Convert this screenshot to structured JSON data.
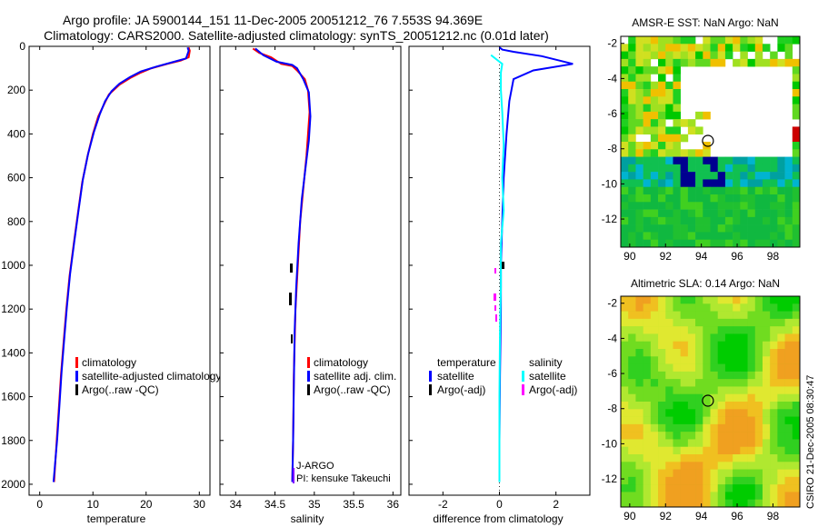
{
  "title_line1": "Argo profile: JA 5900144_151 11-Dec-2005 20051212_76 7.553S 94.369E",
  "title_line2": "Climatology: CARS2000. Satellite-adjusted climatology: synTS_20051212.nc (0.01d later)",
  "timestamp": "CSIRO 21-Dec-2005 08:30:47",
  "colors": {
    "climatology": "#ff0000",
    "satellite": "#0000ff",
    "argo": "#000000",
    "sat_diff": "#00ffff",
    "argo_adj": "#ff00ff"
  },
  "chart_data": [
    {
      "type": "line",
      "name": "temperature-panel",
      "xlabel": "temperature",
      "ylabel": "",
      "xlim": [
        -2,
        32
      ],
      "ylim": [
        2050,
        0
      ],
      "xticks": [
        0,
        10,
        20,
        30
      ],
      "yticks": [
        0,
        200,
        400,
        600,
        800,
        1000,
        1200,
        1400,
        1600,
        1800,
        2000
      ],
      "series": [
        {
          "name": "climatology",
          "color_key": "climatology",
          "points": [
            [
              28.0,
              5
            ],
            [
              28.2,
              20
            ],
            [
              28.0,
              50
            ],
            [
              26.5,
              65
            ],
            [
              24.0,
              80
            ],
            [
              21.0,
              100
            ],
            [
              19.0,
              120
            ],
            [
              17.0,
              145
            ],
            [
              15.0,
              175
            ],
            [
              13.0,
              220
            ],
            [
              12.0,
              270
            ],
            [
              11.0,
              320
            ],
            [
              10.0,
              400
            ],
            [
              9.0,
              500
            ],
            [
              8.0,
              620
            ],
            [
              7.2,
              760
            ],
            [
              6.4,
              900
            ],
            [
              5.6,
              1050
            ],
            [
              5.0,
              1200
            ],
            [
              4.5,
              1350
            ],
            [
              4.0,
              1500
            ],
            [
              3.6,
              1650
            ],
            [
              3.2,
              1800
            ],
            [
              2.7,
              1990
            ]
          ]
        },
        {
          "name": "satellite-adjusted climatology",
          "color_key": "satellite",
          "points": [
            [
              27.8,
              5
            ],
            [
              28.0,
              20
            ],
            [
              27.5,
              55
            ],
            [
              25.0,
              72
            ],
            [
              22.0,
              92
            ],
            [
              19.0,
              115
            ],
            [
              17.0,
              140
            ],
            [
              15.0,
              170
            ],
            [
              13.5,
              205
            ],
            [
              12.3,
              250
            ],
            [
              11.3,
              310
            ],
            [
              10.2,
              390
            ],
            [
              9.1,
              490
            ],
            [
              8.1,
              610
            ],
            [
              7.3,
              750
            ],
            [
              6.5,
              890
            ],
            [
              5.7,
              1040
            ],
            [
              5.1,
              1190
            ],
            [
              4.6,
              1340
            ],
            [
              4.1,
              1490
            ],
            [
              3.7,
              1640
            ],
            [
              3.3,
              1790
            ],
            [
              2.6,
              1990
            ]
          ]
        }
      ],
      "legend": [
        {
          "label": "climatology",
          "color_key": "climatology"
        },
        {
          "label": "satellite-adjusted climatology",
          "color_key": "satellite"
        },
        {
          "label": "Argo(..raw -QC)",
          "color_key": "argo"
        }
      ]
    },
    {
      "type": "line",
      "name": "salinity-panel",
      "xlabel": "salinity",
      "xlim": [
        33.8,
        36.1
      ],
      "ylim": [
        2050,
        0
      ],
      "xticks": [
        34,
        34.5,
        35,
        35.5,
        36
      ],
      "series": [
        {
          "name": "climatology",
          "color_key": "climatology",
          "points": [
            [
              34.22,
              10
            ],
            [
              34.3,
              30
            ],
            [
              34.45,
              50
            ],
            [
              34.58,
              80
            ],
            [
              34.72,
              90
            ],
            [
              34.78,
              110
            ],
            [
              34.88,
              150
            ],
            [
              34.92,
              200
            ],
            [
              34.94,
              300
            ],
            [
              34.92,
              400
            ],
            [
              34.9,
              500
            ],
            [
              34.86,
              650
            ],
            [
              34.82,
              800
            ],
            [
              34.79,
              1000
            ],
            [
              34.76,
              1200
            ],
            [
              34.74,
              1500
            ],
            [
              34.73,
              1800
            ],
            [
              34.72,
              1990
            ]
          ]
        },
        {
          "name": "satellite adj. clim.",
          "color_key": "satellite",
          "points": [
            [
              34.25,
              10
            ],
            [
              34.35,
              40
            ],
            [
              34.52,
              70
            ],
            [
              34.72,
              85
            ],
            [
              34.78,
              100
            ],
            [
              34.86,
              150
            ],
            [
              34.93,
              210
            ],
            [
              34.95,
              320
            ],
            [
              34.93,
              430
            ],
            [
              34.89,
              550
            ],
            [
              34.84,
              700
            ],
            [
              34.8,
              900
            ],
            [
              34.77,
              1100
            ],
            [
              34.75,
              1300
            ],
            [
              34.74,
              1550
            ],
            [
              34.73,
              1800
            ],
            [
              34.72,
              1990
            ]
          ]
        }
      ],
      "legend": [
        {
          "label": "climatology",
          "color_key": "climatology"
        },
        {
          "label": "satellite adj. clim.",
          "color_key": "satellite"
        },
        {
          "label": "Argo(..raw -QC)",
          "color_key": "argo"
        }
      ],
      "annotations": [
        "J-ARGO",
        "PI: kensuke Takeuchi"
      ]
    },
    {
      "type": "line",
      "name": "difference-panel",
      "xlabel": "difference from climatology",
      "xlim": [
        -3.2,
        3.2
      ],
      "ylim": [
        2050,
        0
      ],
      "xticks": [
        -2,
        0,
        2
      ],
      "series": [
        {
          "name": "temperature satellite",
          "color_key": "satellite",
          "points": [
            [
              0,
              5
            ],
            [
              0.1,
              15
            ],
            [
              0.5,
              25
            ],
            [
              1.5,
              45
            ],
            [
              2.6,
              80
            ],
            [
              1.2,
              110
            ],
            [
              0.5,
              150
            ],
            [
              0.35,
              250
            ],
            [
              0.25,
              400
            ],
            [
              0.15,
              600
            ],
            [
              0.1,
              800
            ],
            [
              0.05,
              1000
            ],
            [
              0.05,
              1200
            ],
            [
              0.02,
              1500
            ],
            [
              0.0,
              1800
            ],
            [
              0.0,
              1990
            ]
          ]
        },
        {
          "name": "salinity satellite",
          "color_key": "sat_diff",
          "points": [
            [
              -0.3,
              40
            ],
            [
              -0.1,
              60
            ],
            [
              0.1,
              80
            ],
            [
              0.05,
              120
            ],
            [
              0.05,
              200
            ],
            [
              0.1,
              300
            ],
            [
              0.15,
              450
            ],
            [
              0.1,
              600
            ],
            [
              0.15,
              750
            ],
            [
              0.05,
              900
            ],
            [
              0.05,
              1100
            ],
            [
              0.02,
              1300
            ],
            [
              0.0,
              1600
            ],
            [
              0.0,
              1990
            ]
          ]
        }
      ],
      "legend_left_title": "temperature",
      "legend_right_title": "salinity",
      "legend_left": [
        {
          "label": "satellite",
          "color_key": "satellite"
        },
        {
          "label": "Argo(-adj)",
          "color_key": "argo"
        }
      ],
      "legend_right": [
        {
          "label": "satellite",
          "color_key": "sat_diff"
        },
        {
          "label": "Argo(-adj)",
          "color_key": "argo_adj"
        }
      ]
    },
    {
      "type": "heatmap",
      "name": "sst-map",
      "title": "AMSR-E SST: NaN Argo: NaN",
      "xlim": [
        89.5,
        99.5
      ],
      "ylim": [
        -13.6,
        -1.6
      ],
      "xticks": [
        90,
        92,
        94,
        96,
        98
      ],
      "yticks": [
        -2,
        -4,
        -6,
        -8,
        -10,
        -12
      ],
      "float_position": [
        94.37,
        -7.55
      ]
    },
    {
      "type": "heatmap",
      "name": "sla-map",
      "title": "Altimetric SLA: 0.14 Argo: NaN",
      "xlim": [
        89.5,
        99.5
      ],
      "ylim": [
        -13.6,
        -1.6
      ],
      "xticks": [
        90,
        92,
        94,
        96,
        98
      ],
      "yticks": [
        -2,
        -4,
        -6,
        -8,
        -10,
        -12
      ],
      "float_position": [
        94.37,
        -7.55
      ]
    }
  ]
}
